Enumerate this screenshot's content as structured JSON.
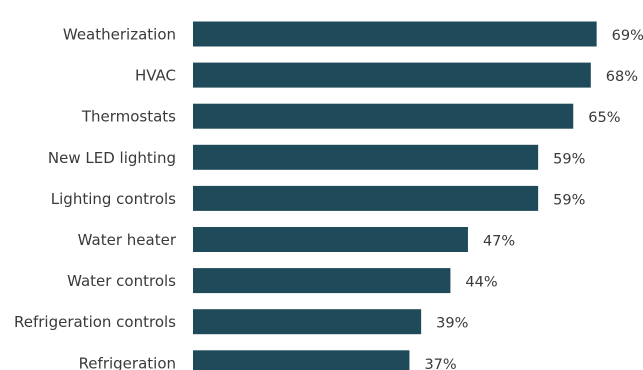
{
  "chart_data": {
    "type": "bar",
    "orientation": "horizontal",
    "categories": [
      "Weatherization",
      "HVAC",
      "Thermostats",
      "New LED lighting",
      "Lighting controls",
      "Water heater",
      "Water controls",
      "Refrigeration controls",
      "Refrigeration"
    ],
    "values": [
      69,
      68,
      65,
      59,
      59,
      47,
      44,
      39,
      37
    ],
    "value_labels": [
      "69%",
      "68%",
      "65%",
      "59%",
      "59%",
      "47%",
      "44%",
      "39%",
      "37%"
    ],
    "title": "",
    "xlabel": "",
    "ylabel": "",
    "xlim": [
      0,
      100
    ],
    "grid": false,
    "legend": "none",
    "bar_color": "#1f4a59"
  }
}
